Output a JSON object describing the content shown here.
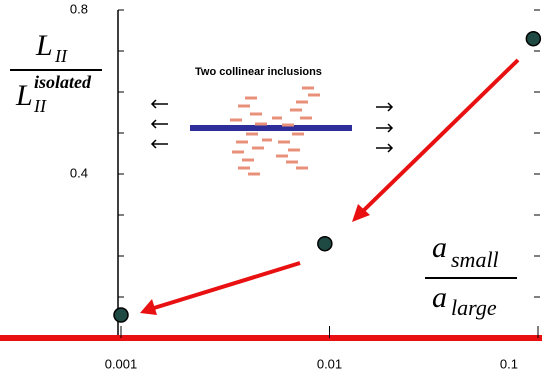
{
  "chart_data": {
    "type": "scatter",
    "title": "Two collinear inclusions",
    "ylabel": {
      "numerator": {
        "base": "L",
        "sub": "II"
      },
      "denominator": {
        "base": "L",
        "sub": "II",
        "sup": "isolated"
      }
    },
    "xlabel": {
      "numerator": {
        "base": "a",
        "sub": "small"
      },
      "denominator": {
        "base": "a",
        "sub": "large"
      }
    },
    "x": [
      0.001,
      0.0095,
      0.095
    ],
    "values": [
      0.056,
      0.23,
      0.73
    ],
    "color": "#1f4a44",
    "xscale": "log",
    "xlim": [
      0.001,
      0.1
    ],
    "xticks": [
      0.001,
      0.01,
      0.1
    ],
    "ylim": [
      0,
      0.8
    ],
    "yticks": [
      0.4,
      0.8
    ],
    "yminor": [
      0.1,
      0.2,
      0.3,
      0.5,
      0.6,
      0.7
    ]
  }
}
